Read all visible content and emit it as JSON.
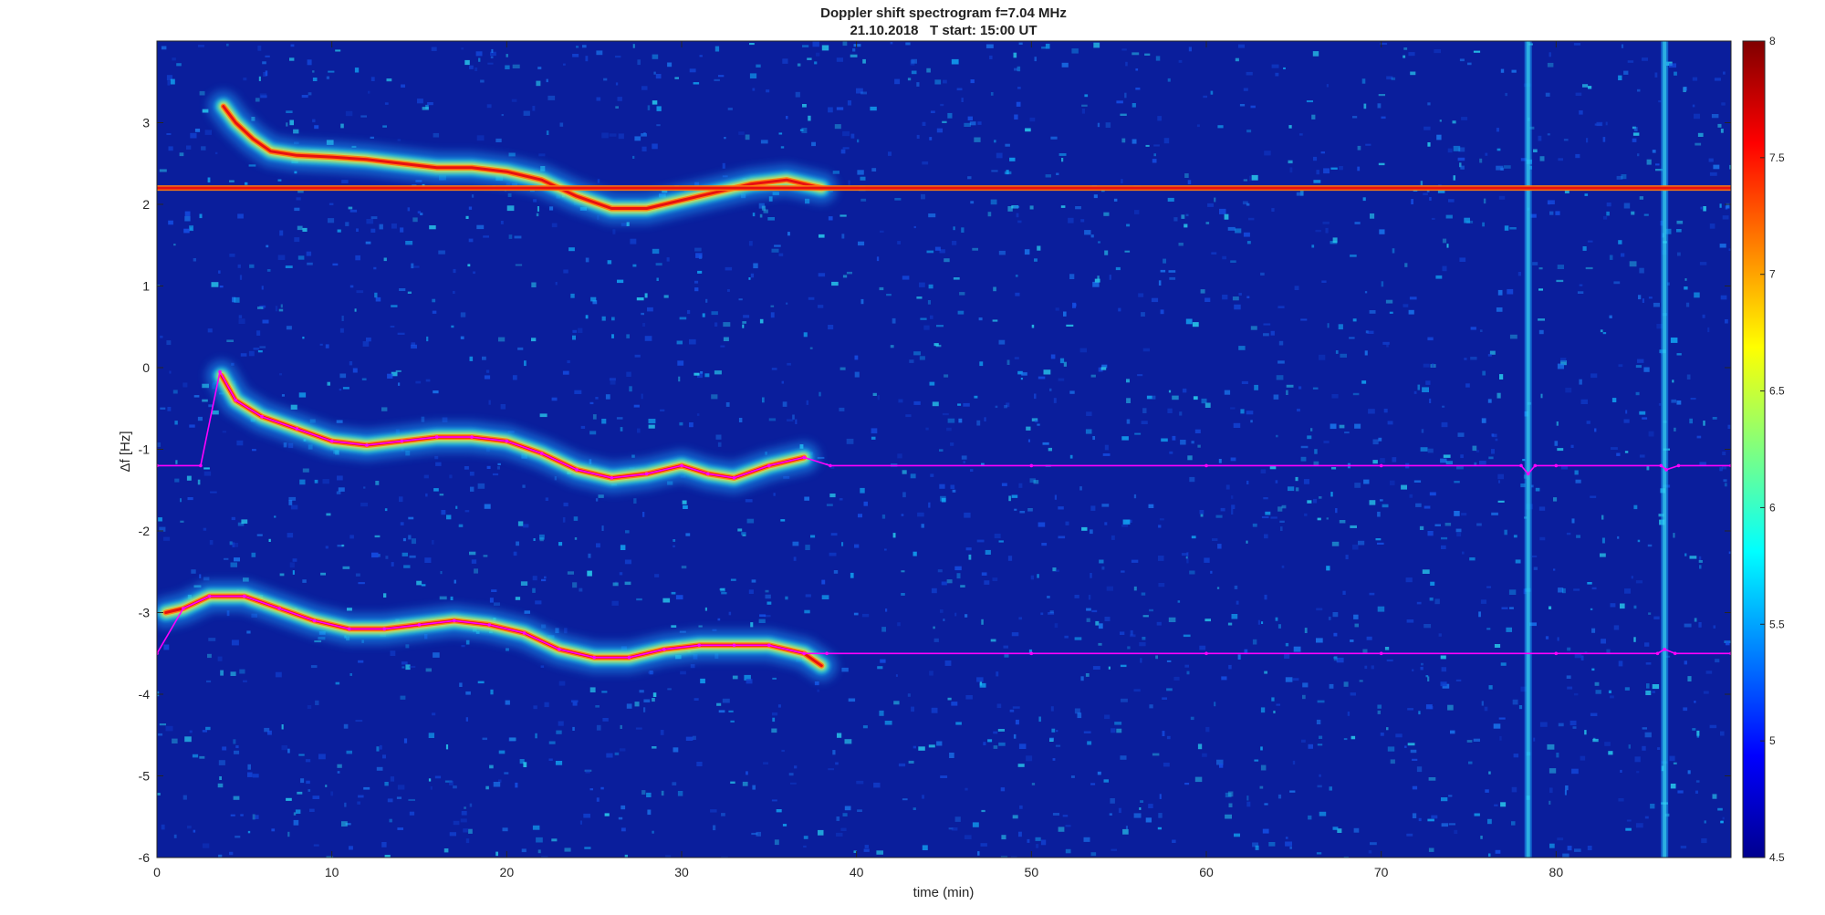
{
  "chart_data": {
    "type": "heatmap",
    "title": "Doppler shift spectrogram f=7.04 MHz",
    "subtitle": "21.10.2018   T start: 15:00 UT",
    "xlabel": "time (min)",
    "ylabel": "Δf [Hz]",
    "xlim": [
      0,
      90
    ],
    "ylim": [
      -6,
      4
    ],
    "x_ticks": [
      0,
      10,
      20,
      30,
      40,
      50,
      60,
      70,
      80
    ],
    "y_ticks": [
      -6,
      -5,
      -4,
      -3,
      -2,
      -1,
      0,
      1,
      2,
      3
    ],
    "colorbar": {
      "range": [
        4.5,
        8
      ],
      "ticks": [
        4.5,
        5,
        5.5,
        6,
        6.5,
        7,
        7.5,
        8
      ],
      "colormap": "jet"
    },
    "background_color": "#0a1e9c",
    "traces": [
      {
        "color": "intensity",
        "x": [
          3.8,
          4.5,
          5.5,
          6.5,
          8,
          10,
          12,
          14,
          16,
          18,
          20,
          22,
          24,
          26,
          28,
          30,
          32,
          34,
          36,
          38
        ],
        "y": [
          3.2,
          3.0,
          2.8,
          2.65,
          2.6,
          2.58,
          2.55,
          2.5,
          2.45,
          2.45,
          2.4,
          2.3,
          2.1,
          1.95,
          1.95,
          2.05,
          2.15,
          2.25,
          2.3,
          2.2
        ]
      },
      {
        "color": "intensity",
        "x": [
          0,
          10,
          20,
          30,
          40,
          50,
          60,
          70,
          80,
          90
        ],
        "y": [
          2.2,
          2.2,
          2.2,
          2.2,
          2.2,
          2.2,
          2.2,
          2.2,
          2.2,
          2.2
        ]
      },
      {
        "color": "intensity",
        "x": [
          3.7,
          4.5,
          6,
          8,
          10,
          12,
          14,
          16,
          18,
          20,
          22,
          24,
          26,
          28,
          30,
          31.5,
          33,
          35,
          37
        ],
        "y": [
          -0.1,
          -0.4,
          -0.6,
          -0.75,
          -0.9,
          -0.95,
          -0.9,
          -0.85,
          -0.85,
          -0.9,
          -1.05,
          -1.25,
          -1.35,
          -1.3,
          -1.2,
          -1.3,
          -1.35,
          -1.2,
          -1.1
        ]
      },
      {
        "color": "intensity",
        "x": [
          0.5,
          1.5,
          3,
          5,
          7,
          9,
          11,
          13,
          15,
          17,
          19,
          21,
          23,
          25,
          27,
          29,
          31,
          33,
          35,
          37,
          38
        ],
        "y": [
          -3.0,
          -2.95,
          -2.8,
          -2.8,
          -2.95,
          -3.1,
          -3.2,
          -3.2,
          -3.15,
          -3.1,
          -3.15,
          -3.25,
          -3.45,
          -3.55,
          -3.55,
          -3.45,
          -3.4,
          -3.4,
          -3.4,
          -3.5,
          -3.65
        ]
      }
    ],
    "fitted_lines": [
      {
        "color": "#ff00ff",
        "x": [
          0,
          2.5,
          3.6,
          4.5,
          6,
          8,
          10,
          12,
          14,
          16,
          18,
          20,
          22,
          24,
          26,
          28,
          30,
          31.5,
          33,
          35,
          37,
          38.5,
          50,
          60,
          70,
          78,
          78.4,
          78.8,
          80,
          86,
          86.3,
          87,
          90
        ],
        "y": [
          -1.2,
          -1.2,
          -0.05,
          -0.4,
          -0.6,
          -0.75,
          -0.9,
          -0.95,
          -0.9,
          -0.85,
          -0.85,
          -0.9,
          -1.05,
          -1.25,
          -1.35,
          -1.3,
          -1.2,
          -1.3,
          -1.35,
          -1.2,
          -1.1,
          -1.2,
          -1.2,
          -1.2,
          -1.2,
          -1.2,
          -1.3,
          -1.2,
          -1.2,
          -1.2,
          -1.25,
          -1.2,
          -1.2
        ]
      },
      {
        "color": "#ff00ff",
        "x": [
          0,
          1.5,
          3,
          5,
          7,
          9,
          11,
          13,
          15,
          17,
          19,
          21,
          23,
          25,
          27,
          29,
          31,
          33,
          35,
          37,
          38.3,
          50,
          60,
          70,
          80,
          85.8,
          86.2,
          86.8,
          90
        ],
        "y": [
          -3.5,
          -2.95,
          -2.8,
          -2.8,
          -2.95,
          -3.1,
          -3.2,
          -3.2,
          -3.15,
          -3.1,
          -3.15,
          -3.25,
          -3.45,
          -3.55,
          -3.55,
          -3.45,
          -3.4,
          -3.4,
          -3.4,
          -3.5,
          -3.5,
          -3.5,
          -3.5,
          -3.5,
          -3.5,
          -3.5,
          -3.45,
          -3.5,
          -3.5
        ]
      }
    ],
    "vertical_artifacts_x": [
      78.4,
      86.2
    ]
  }
}
